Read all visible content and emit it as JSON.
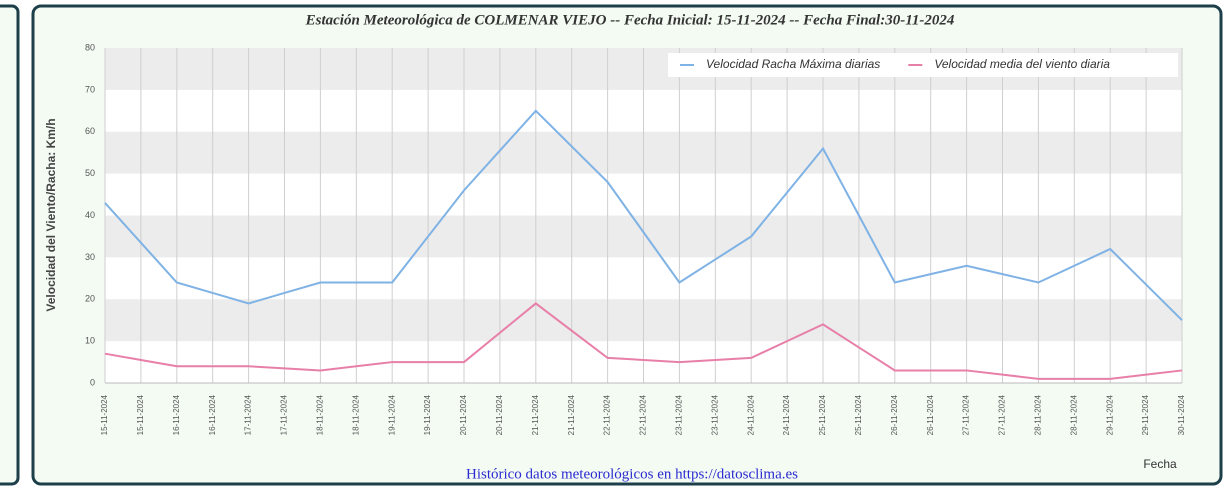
{
  "chart_data": {
    "type": "line",
    "title": "Estación Meteorológica de COLMENAR VIEJO -- Fecha Inicial: 15-11-2024 -- Fecha Final:30-11-2024",
    "y_label": "Velocidad del Viento/Racha: Km/h",
    "x_label": "Fecha",
    "footer": "Histórico datos meteorológicos en https://datosclima.es",
    "categories": [
      "15-11-2024",
      "15-11-2024",
      "16-11-2024",
      "16-11-2024",
      "17-11-2024",
      "17-11-2024",
      "18-11-2024",
      "18-11-2024",
      "19-11-2024",
      "19-11-2024",
      "20-11-2024",
      "20-11-2024",
      "21-11-2024",
      "21-11-2024",
      "22-11-2024",
      "22-11-2024",
      "23-11-2024",
      "23-11-2024",
      "24-11-2024",
      "24-11-2024",
      "25-11-2024",
      "25-11-2024",
      "26-11-2024",
      "26-11-2024",
      "27-11-2024",
      "27-11-2024",
      "28-11-2024",
      "28-11-2024",
      "29-11-2024",
      "29-11-2024",
      "30-11-2024"
    ],
    "series": [
      {
        "name": "Velocidad Racha Máxima diarias",
        "color": "#7fb2e5",
        "values": [
          43,
          33.5,
          24,
          21.5,
          19,
          21.5,
          24,
          24,
          24,
          35,
          46,
          55.5,
          65,
          56.5,
          48,
          36,
          24,
          29.5,
          35,
          45.5,
          56,
          40,
          24,
          26,
          28,
          26,
          24,
          28,
          32,
          23.5,
          15
        ]
      },
      {
        "name": "Velocidad media del viento diaria",
        "color": "#e87fa8",
        "values": [
          7,
          5.5,
          4,
          4,
          4,
          3.5,
          3,
          4,
          5,
          5,
          5,
          12,
          19,
          12.5,
          6,
          5.5,
          5,
          5.5,
          6,
          10,
          14,
          8.5,
          3,
          3,
          3,
          2,
          1,
          1,
          1,
          2,
          3
        ]
      }
    ],
    "ylim": [
      0,
      80
    ],
    "yticks": [
      0,
      10,
      20,
      30,
      40,
      50,
      60,
      70,
      80
    ],
    "grid": true,
    "legend": "top-right"
  }
}
